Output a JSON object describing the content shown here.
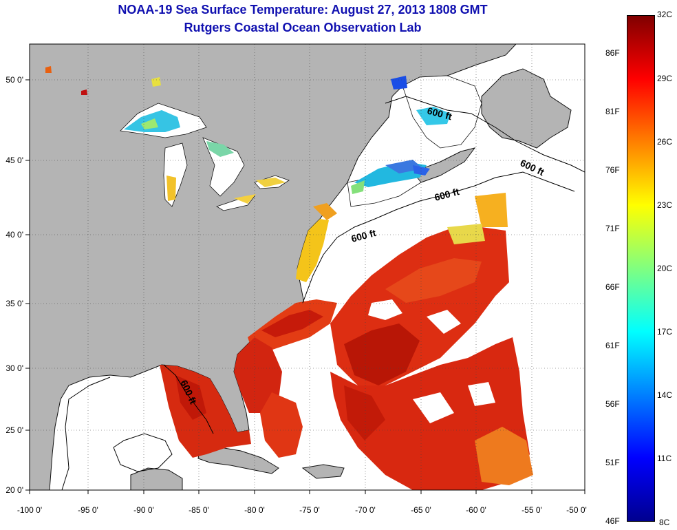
{
  "title": "NOAA-19 Sea Surface Temperature:  August 27, 2013 1808 GMT",
  "subtitle": "Rutgers Coastal Ocean Observation Lab",
  "map": {
    "lon_range": [
      -100,
      -50
    ],
    "lat_range": [
      20,
      52.5
    ],
    "lon_ticks": [
      "-100 0'",
      "-95 0'",
      "-90 0'",
      "-85 0'",
      "-80 0'",
      "-75 0'",
      "-70 0'",
      "-65 0'",
      "-60 0'",
      "-55 0'",
      "-50 0'"
    ],
    "lat_ticks": [
      "20 0'",
      "25 0'",
      "30 0'",
      "35 0'",
      "40 0'",
      "45 0'",
      "50 0'"
    ],
    "grid": "dotted",
    "land_color": "#b4b4b4",
    "no_data_color": "#ffffff",
    "contour_labels": [
      "600 ft",
      "600 ft",
      "600 ft",
      "600 ft",
      "600 ft"
    ]
  },
  "colorbar": {
    "celsius_labels": [
      "32C",
      "29C",
      "26C",
      "23C",
      "20C",
      "17C",
      "14C",
      "11C",
      "8C"
    ],
    "fahrenheit_labels": [
      "86F",
      "81F",
      "76F",
      "71F",
      "66F",
      "61F",
      "56F",
      "51F",
      "46F"
    ],
    "range_c": [
      8,
      32
    ]
  }
}
